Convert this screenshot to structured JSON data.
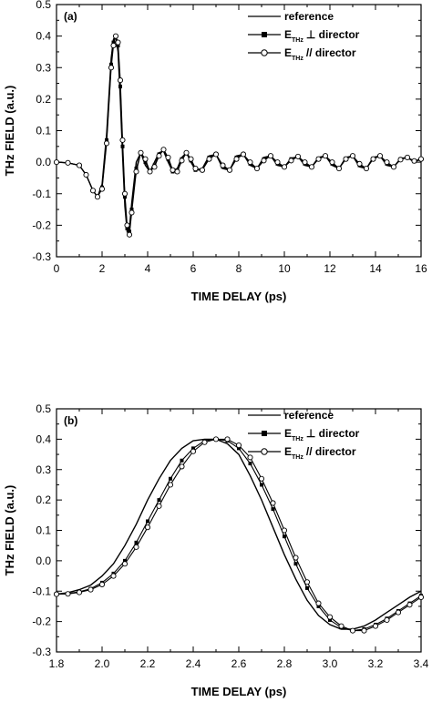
{
  "chart_data": [
    {
      "type": "line",
      "panel_label": "(a)",
      "xlabel": "TIME DELAY (ps)",
      "ylabel": "THz FIELD (a.u.)",
      "xlim": [
        0,
        16
      ],
      "ylim": [
        -0.3,
        0.5
      ],
      "xticks": [
        0,
        2,
        4,
        6,
        8,
        10,
        12,
        14,
        16
      ],
      "xtick_labels": [
        "0",
        "2",
        "4",
        "6",
        "8",
        "10",
        "12",
        "14",
        "16"
      ],
      "yticks": [
        -0.3,
        -0.2,
        -0.1,
        0.0,
        0.1,
        0.2,
        0.3,
        0.4,
        0.5
      ],
      "ytick_labels": [
        "-0.3",
        "-0.2",
        "-0.1",
        "0.0",
        "0.1",
        "0.2",
        "0.3",
        "0.4",
        "0.5"
      ],
      "legend_position": "top-right",
      "series": [
        {
          "name": "reference",
          "legend_main": "reference",
          "legend_sub": "",
          "legend_suffix": "",
          "marker": "none",
          "x": [
            0,
            0.5,
            1,
            1.3,
            1.6,
            1.8,
            2.0,
            2.2,
            2.4,
            2.5,
            2.6,
            2.7,
            2.8,
            2.9,
            3.0,
            3.1,
            3.2,
            3.3,
            3.5,
            3.7,
            3.9,
            4.1,
            4.3,
            4.5,
            4.7,
            4.9,
            5.1,
            5.3,
            5.5,
            5.7,
            5.9,
            6.1,
            6.4,
            6.7,
            7.0,
            7.3,
            7.6,
            7.9,
            8.2,
            8.5,
            8.8,
            9.1,
            9.4,
            9.7,
            10.0,
            10.3,
            10.6,
            10.9,
            11.2,
            11.5,
            11.8,
            12.1,
            12.4,
            12.7,
            13.0,
            13.3,
            13.6,
            13.9,
            14.2,
            14.5,
            14.8,
            15.1,
            15.4,
            15.7,
            16.0
          ],
          "y": [
            0,
            -0.002,
            -0.01,
            -0.04,
            -0.09,
            -0.11,
            -0.07,
            0.09,
            0.33,
            0.39,
            0.4,
            0.35,
            0.2,
            0.02,
            -0.14,
            -0.22,
            -0.21,
            -0.13,
            0.0,
            0.03,
            -0.01,
            -0.03,
            0.0,
            0.03,
            0.035,
            0.0,
            -0.03,
            -0.02,
            0.015,
            0.03,
            0.0,
            -0.025,
            -0.02,
            0.02,
            0.025,
            -0.02,
            -0.025,
            0.02,
            0.025,
            -0.01,
            -0.02,
            0.015,
            0.02,
            -0.01,
            -0.015,
            0.012,
            0.018,
            -0.01,
            -0.015,
            0.015,
            0.02,
            -0.01,
            -0.02,
            0.015,
            0.02,
            -0.015,
            -0.02,
            0.015,
            0.02,
            -0.01,
            -0.015,
            0.012,
            0.015,
            0.0,
            0.01
          ]
        },
        {
          "name": "E_THz ⊥ director",
          "legend_main": "E",
          "legend_sub": "THz",
          "legend_suffix": "⊥ director",
          "marker": "filled-square",
          "x": [
            0,
            0.5,
            1,
            1.3,
            1.6,
            1.8,
            2.0,
            2.2,
            2.4,
            2.5,
            2.6,
            2.7,
            2.8,
            2.9,
            3.0,
            3.1,
            3.2,
            3.3,
            3.5,
            3.7,
            3.9,
            4.1,
            4.3,
            4.5,
            4.7,
            4.9,
            5.1,
            5.3,
            5.5,
            5.7,
            5.9,
            6.1,
            6.4,
            6.7,
            7.0,
            7.3,
            7.6,
            7.9,
            8.2,
            8.5,
            8.8,
            9.1,
            9.4,
            9.7,
            10.0,
            10.3,
            10.6,
            10.9,
            11.2,
            11.5,
            11.8,
            12.1,
            12.4,
            12.7,
            13.0,
            13.3,
            13.6,
            13.9,
            14.2,
            14.5,
            14.8,
            15.1,
            15.4,
            15.7,
            16.0
          ],
          "y": [
            0,
            -0.002,
            -0.01,
            -0.04,
            -0.09,
            -0.11,
            -0.08,
            0.07,
            0.31,
            0.38,
            0.4,
            0.37,
            0.24,
            0.05,
            -0.11,
            -0.21,
            -0.22,
            -0.15,
            -0.02,
            0.03,
            0.0,
            -0.03,
            -0.01,
            0.025,
            0.04,
            0.01,
            -0.03,
            -0.025,
            0.01,
            0.03,
            0.005,
            -0.025,
            -0.025,
            0.015,
            0.025,
            -0.015,
            -0.025,
            0.015,
            0.025,
            -0.005,
            -0.02,
            0.01,
            0.02,
            -0.005,
            -0.015,
            0.01,
            0.018,
            -0.005,
            -0.015,
            0.012,
            0.02,
            -0.005,
            -0.02,
            0.012,
            0.02,
            -0.01,
            -0.02,
            0.012,
            0.02,
            -0.005,
            -0.015,
            0.01,
            0.015,
            0.002,
            0.01
          ]
        },
        {
          "name": "E_THz // director",
          "legend_main": "E",
          "legend_sub": "THz",
          "legend_suffix": "// director",
          "marker": "open-circle",
          "x": [
            0,
            0.5,
            1,
            1.3,
            1.6,
            1.8,
            2.0,
            2.2,
            2.4,
            2.5,
            2.6,
            2.7,
            2.8,
            2.9,
            3.0,
            3.1,
            3.2,
            3.3,
            3.5,
            3.7,
            3.9,
            4.1,
            4.3,
            4.5,
            4.7,
            4.9,
            5.1,
            5.3,
            5.5,
            5.7,
            5.9,
            6.1,
            6.4,
            6.7,
            7.0,
            7.3,
            7.6,
            7.9,
            8.2,
            8.5,
            8.8,
            9.1,
            9.4,
            9.7,
            10.0,
            10.3,
            10.6,
            10.9,
            11.2,
            11.5,
            11.8,
            12.1,
            12.4,
            12.7,
            13.0,
            13.3,
            13.6,
            13.9,
            14.2,
            14.5,
            14.8,
            15.1,
            15.4,
            15.7,
            16.0
          ],
          "y": [
            0,
            -0.002,
            -0.01,
            -0.04,
            -0.09,
            -0.11,
            -0.085,
            0.06,
            0.3,
            0.37,
            0.4,
            0.38,
            0.26,
            0.07,
            -0.1,
            -0.2,
            -0.23,
            -0.16,
            -0.03,
            0.03,
            0.01,
            -0.03,
            -0.015,
            0.02,
            0.04,
            0.015,
            -0.025,
            -0.03,
            0.005,
            0.03,
            0.01,
            -0.02,
            -0.025,
            0.01,
            0.025,
            -0.01,
            -0.025,
            0.01,
            0.025,
            0.0,
            -0.02,
            0.005,
            0.02,
            0.0,
            -0.015,
            0.005,
            0.018,
            0.0,
            -0.015,
            0.01,
            0.02,
            0.0,
            -0.02,
            0.01,
            0.02,
            -0.005,
            -0.02,
            0.01,
            0.02,
            0.0,
            -0.015,
            0.008,
            0.015,
            0.004,
            0.01
          ]
        }
      ]
    },
    {
      "type": "line",
      "panel_label": "(b)",
      "xlabel": "TIME DELAY (ps)",
      "ylabel": "THz FIELD (a.u.)",
      "xlim": [
        1.8,
        3.4
      ],
      "ylim": [
        -0.3,
        0.5
      ],
      "xticks": [
        1.8,
        2.0,
        2.2,
        2.4,
        2.6,
        2.8,
        3.0,
        3.2,
        3.4
      ],
      "xtick_labels": [
        "1.8",
        "2.0",
        "2.2",
        "2.4",
        "2.6",
        "2.8",
        "3.0",
        "3.2",
        "3.4"
      ],
      "yticks": [
        -0.3,
        -0.2,
        -0.1,
        0.0,
        0.1,
        0.2,
        0.3,
        0.4,
        0.5
      ],
      "ytick_labels": [
        "-0.3",
        "-0.2",
        "-0.1",
        "0.0",
        "0.1",
        "0.2",
        "0.3",
        "0.4",
        "0.5"
      ],
      "legend_position": "top-right",
      "series": [
        {
          "name": "reference",
          "legend_main": "reference",
          "legend_sub": "",
          "legend_suffix": "",
          "marker": "none",
          "x": [
            1.8,
            1.85,
            1.9,
            1.95,
            2.0,
            2.05,
            2.1,
            2.15,
            2.2,
            2.25,
            2.3,
            2.35,
            2.4,
            2.45,
            2.5,
            2.55,
            2.6,
            2.65,
            2.7,
            2.75,
            2.8,
            2.85,
            2.9,
            2.95,
            3.0,
            3.05,
            3.1,
            3.15,
            3.2,
            3.25,
            3.3,
            3.35,
            3.4
          ],
          "y": [
            -0.11,
            -0.105,
            -0.095,
            -0.08,
            -0.05,
            -0.01,
            0.05,
            0.12,
            0.2,
            0.27,
            0.33,
            0.37,
            0.395,
            0.4,
            0.4,
            0.385,
            0.35,
            0.28,
            0.2,
            0.11,
            0.02,
            -0.06,
            -0.13,
            -0.18,
            -0.21,
            -0.225,
            -0.225,
            -0.215,
            -0.195,
            -0.17,
            -0.145,
            -0.12,
            -0.1
          ]
        },
        {
          "name": "E_THz ⊥ director",
          "legend_main": "E",
          "legend_sub": "THz",
          "legend_suffix": "⊥ director",
          "marker": "filled-square",
          "x": [
            1.8,
            1.85,
            1.9,
            1.95,
            2.0,
            2.05,
            2.1,
            2.15,
            2.2,
            2.25,
            2.3,
            2.35,
            2.4,
            2.45,
            2.5,
            2.55,
            2.6,
            2.65,
            2.7,
            2.75,
            2.8,
            2.85,
            2.9,
            2.95,
            3.0,
            3.05,
            3.1,
            3.15,
            3.2,
            3.25,
            3.3,
            3.35,
            3.4
          ],
          "y": [
            -0.11,
            -0.108,
            -0.102,
            -0.092,
            -0.072,
            -0.042,
            0.0,
            0.06,
            0.13,
            0.2,
            0.27,
            0.33,
            0.37,
            0.395,
            0.4,
            0.395,
            0.37,
            0.32,
            0.25,
            0.17,
            0.08,
            -0.01,
            -0.09,
            -0.15,
            -0.195,
            -0.22,
            -0.23,
            -0.225,
            -0.21,
            -0.19,
            -0.165,
            -0.14,
            -0.115
          ]
        },
        {
          "name": "E_THz // director",
          "legend_main": "E",
          "legend_sub": "THz",
          "legend_suffix": "// director",
          "marker": "open-circle",
          "x": [
            1.8,
            1.85,
            1.9,
            1.95,
            2.0,
            2.05,
            2.1,
            2.15,
            2.2,
            2.25,
            2.3,
            2.35,
            2.4,
            2.45,
            2.5,
            2.55,
            2.6,
            2.65,
            2.7,
            2.75,
            2.8,
            2.85,
            2.9,
            2.95,
            3.0,
            3.05,
            3.1,
            3.15,
            3.2,
            3.25,
            3.3,
            3.35,
            3.4
          ],
          "y": [
            -0.11,
            -0.109,
            -0.104,
            -0.095,
            -0.078,
            -0.05,
            -0.01,
            0.045,
            0.11,
            0.18,
            0.25,
            0.31,
            0.36,
            0.39,
            0.4,
            0.4,
            0.38,
            0.34,
            0.27,
            0.19,
            0.1,
            0.01,
            -0.07,
            -0.14,
            -0.185,
            -0.215,
            -0.23,
            -0.23,
            -0.215,
            -0.195,
            -0.17,
            -0.145,
            -0.12
          ]
        }
      ]
    }
  ]
}
